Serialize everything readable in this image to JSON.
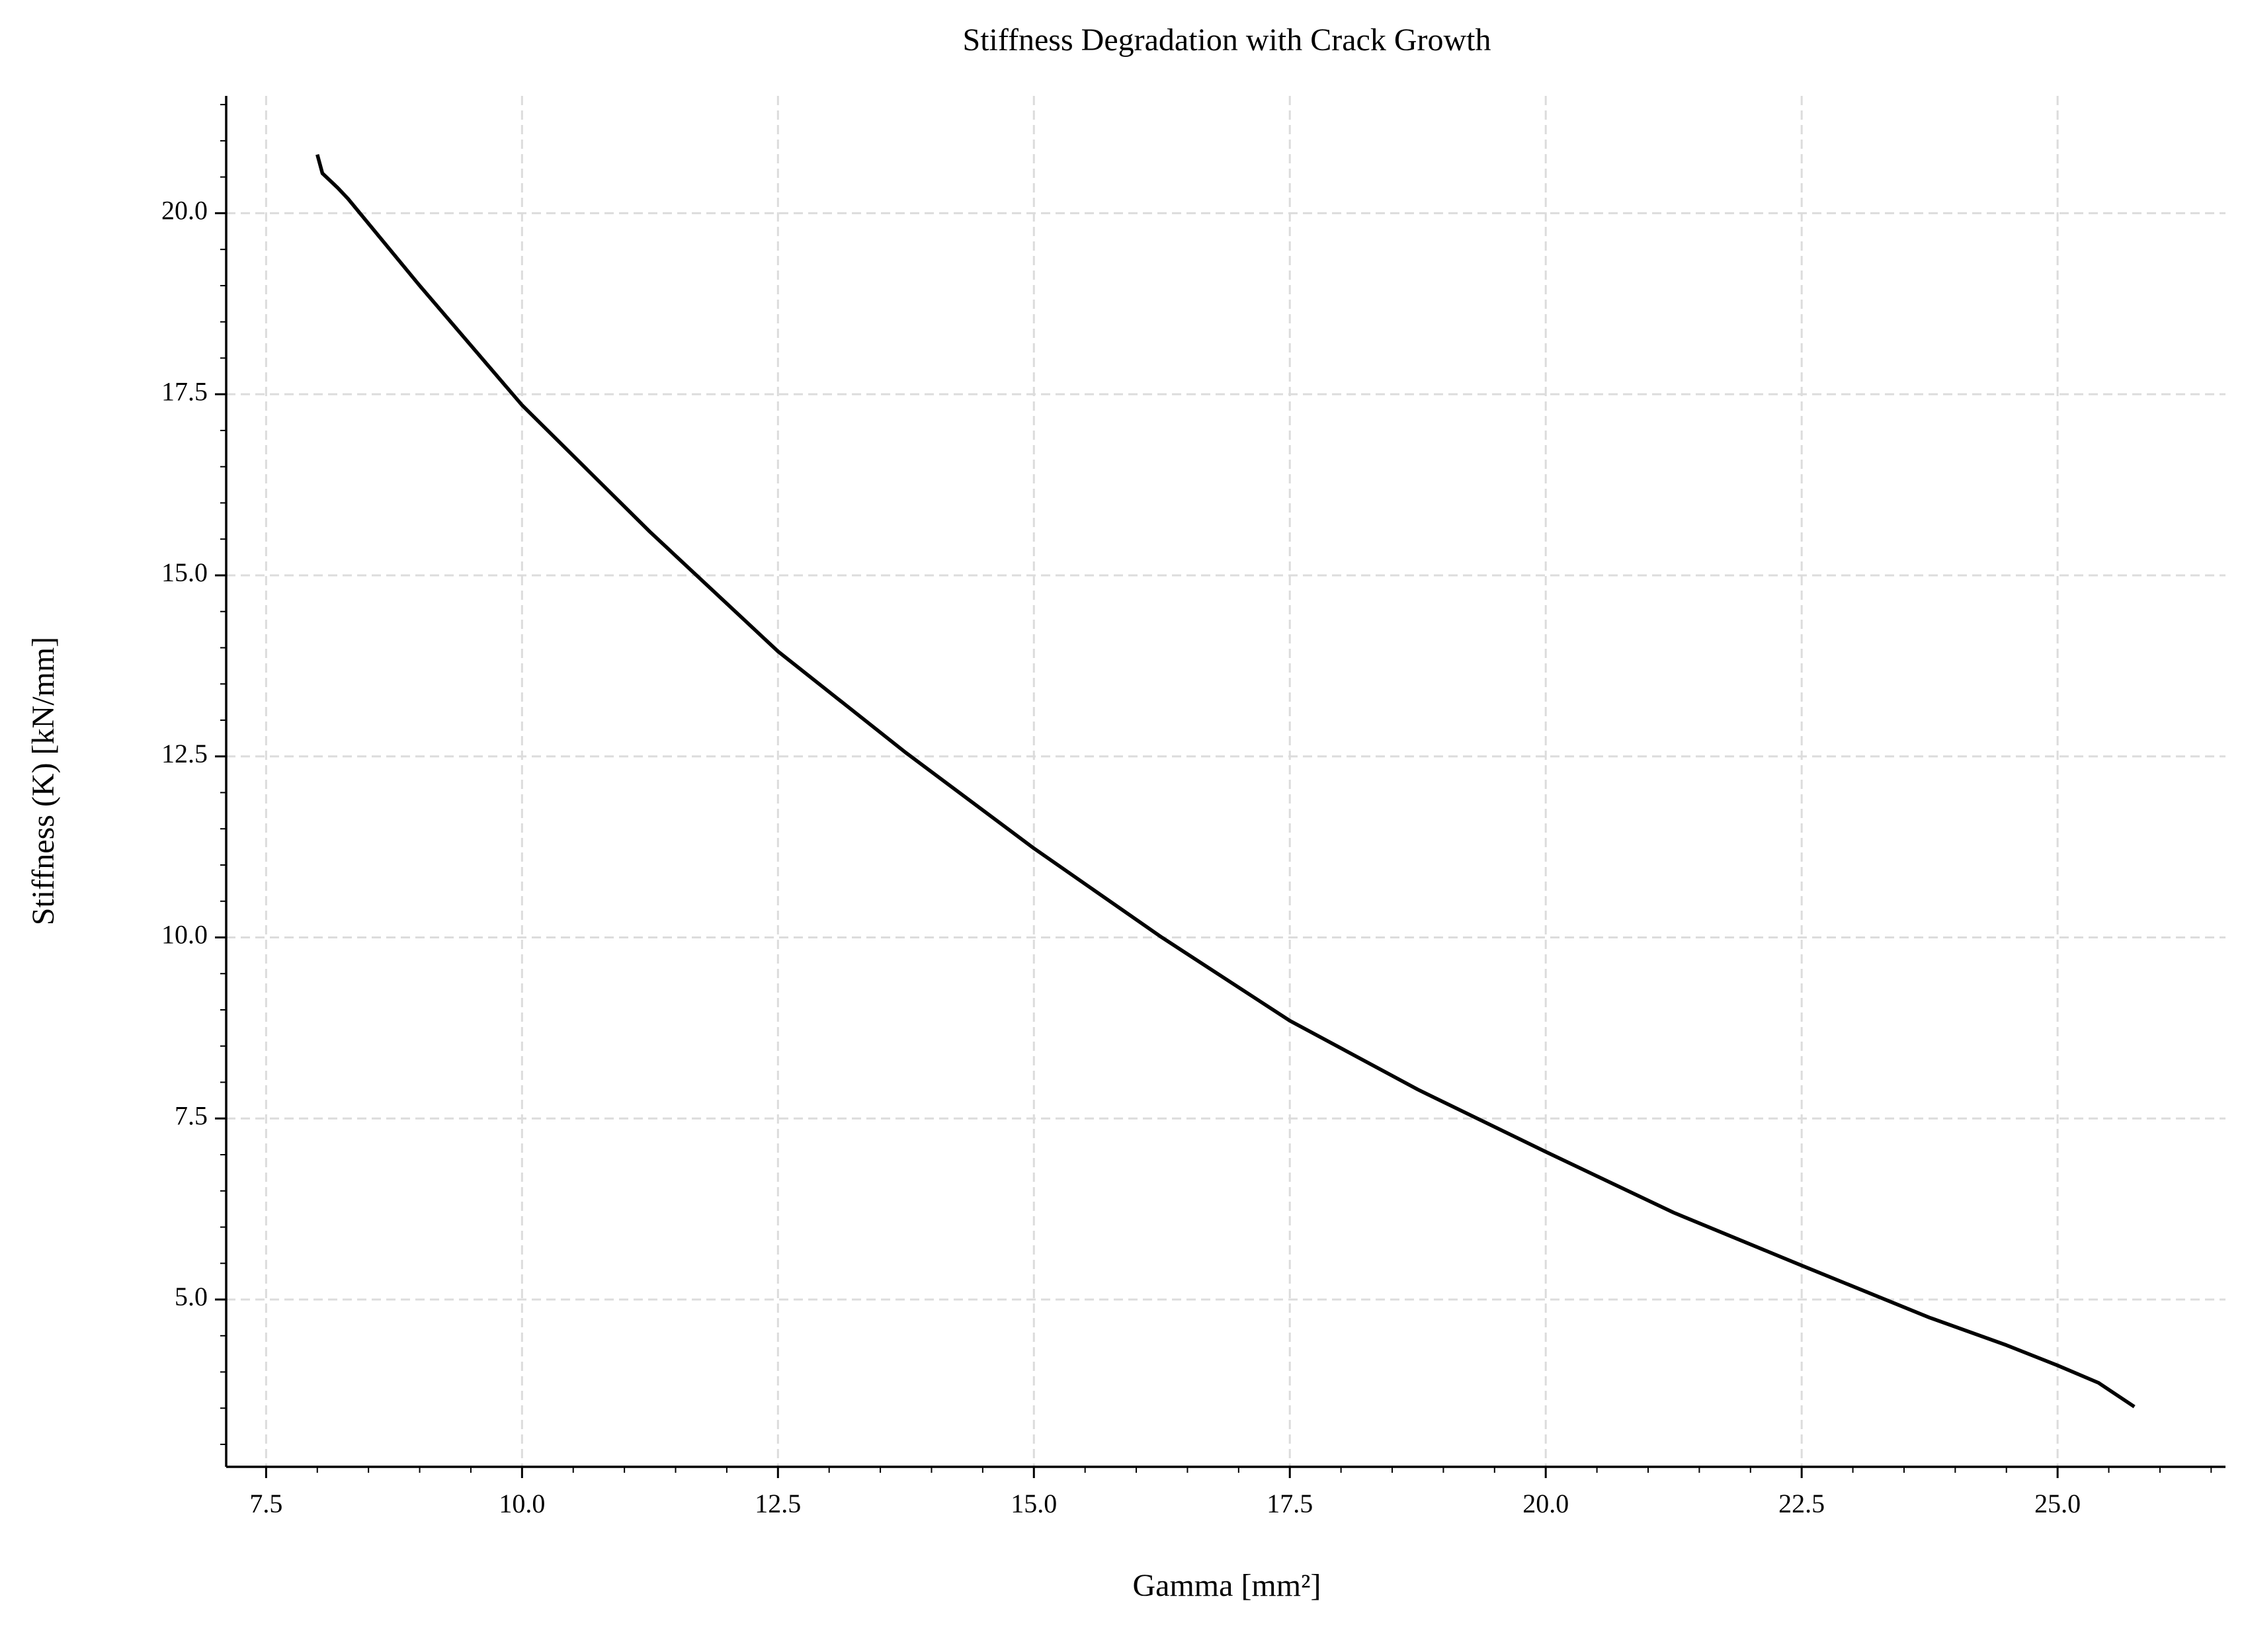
{
  "chart_data": {
    "type": "line",
    "title": "Stiffness Degradation with Crack Growth",
    "x_label": "Gamma [mm²]",
    "y_label": "Stiffness (K) [kN/mm]",
    "x": [
      8.0,
      8.05,
      8.2,
      8.3,
      9.0,
      10.0,
      11.25,
      12.5,
      13.75,
      15.0,
      16.25,
      17.5,
      18.75,
      20.0,
      21.25,
      22.5,
      23.75,
      24.5,
      25.0,
      25.4,
      25.75
    ],
    "series": [
      {
        "color": "#000000",
        "values": [
          20.81,
          20.55,
          20.35,
          20.2,
          19.0,
          17.35,
          15.6,
          13.95,
          12.55,
          11.23,
          10.0,
          8.85,
          7.9,
          7.04,
          6.2,
          5.47,
          4.75,
          4.37,
          4.09,
          3.85,
          3.52
        ]
      }
    ],
    "xlim": [
      7.11,
      26.64
    ],
    "ylim": [
      2.69,
      21.62
    ],
    "xticks": [
      7.5,
      {
        "value": 10,
        "label": "10.0"
      },
      12.5,
      {
        "value": 15,
        "label": "15.0"
      },
      17.5,
      {
        "value": 20,
        "label": "20.0"
      },
      22.5,
      {
        "value": 25,
        "label": "25.0"
      }
    ],
    "yticks": [
      {
        "value": 5,
        "label": "5.0"
      },
      7.5,
      {
        "value": 10,
        "label": "10.0"
      },
      12.5,
      {
        "value": 15,
        "label": "15.0"
      },
      17.5,
      {
        "value": 20,
        "label": "20.0"
      }
    ],
    "xminorticks": [
      7.5,
      8,
      8.5,
      9,
      9.5,
      10,
      10.5,
      11,
      11.5,
      12,
      12.5,
      13,
      13.5,
      14,
      14.5,
      15,
      15.5,
      16,
      16.5,
      17,
      17.5,
      18,
      18.5,
      19,
      19.5,
      20,
      20.5,
      21,
      21.5,
      22,
      22.5,
      23,
      23.5,
      24,
      24.5,
      25,
      25.5,
      26,
      26.5
    ],
    "yminorticks": [
      3,
      3.5,
      4,
      4.5,
      5,
      5.5,
      6,
      6.5,
      7,
      7.5,
      8,
      8.5,
      9,
      9.5,
      10,
      10.5,
      11,
      11.5,
      12,
      12.5,
      13,
      13.5,
      14,
      14.5,
      15,
      15.5,
      16,
      16.5,
      17,
      17.5,
      18,
      18.5,
      19,
      19.5,
      20,
      20.5,
      21,
      21.5
    ],
    "grid": true
  }
}
